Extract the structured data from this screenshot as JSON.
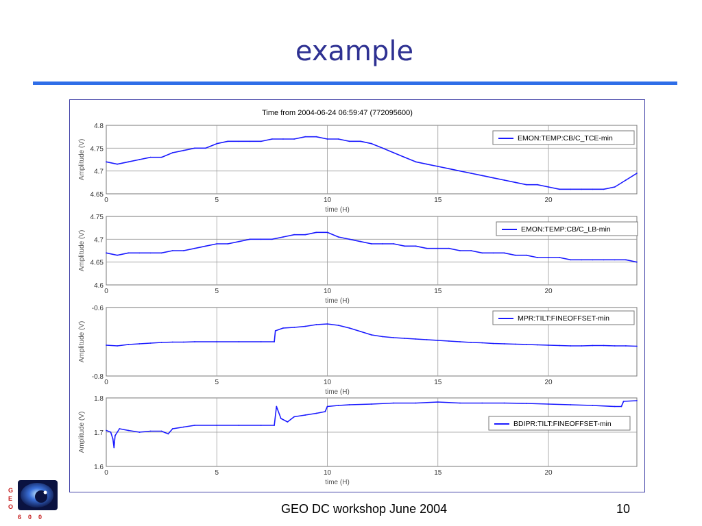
{
  "slide": {
    "title": "example",
    "footer": "GEO DC workshop June 2004",
    "page_number": "10",
    "accent_color": "#2f6ee8",
    "title_color": "#2e3192"
  },
  "logo": {
    "letters": [
      "G",
      "E",
      "O",
      "6",
      "0",
      "0"
    ]
  },
  "chart_data": [
    {
      "type": "line",
      "title": "Time from 2004-06-24 06:59:47 (772095600)",
      "xlabel": "time (H)",
      "ylabel": "Amplitude (V)",
      "xlim": [
        0,
        24
      ],
      "ylim": [
        4.65,
        4.8
      ],
      "xticks": [
        0,
        5,
        10,
        15,
        20
      ],
      "yticks": [
        4.65,
        4.7,
        4.75,
        4.8
      ],
      "ytick_labels": [
        "4.65",
        "4.7",
        "4.75",
        "4.8"
      ],
      "grid": true,
      "legend_position": "top-right",
      "series": [
        {
          "name": "EMON:TEMP:CB/C_TCE-min",
          "color": "#1a1aff",
          "x": [
            0,
            0.5,
            1,
            1.5,
            2,
            2.5,
            3,
            3.5,
            4,
            4.5,
            5,
            5.5,
            6,
            6.5,
            7,
            7.5,
            8,
            8.5,
            9,
            9.5,
            10,
            10.5,
            11,
            11.5,
            12,
            12.5,
            13,
            13.5,
            14,
            14.5,
            15,
            15.5,
            16,
            16.5,
            17,
            17.5,
            18,
            18.5,
            19,
            19.5,
            20,
            20.5,
            21,
            21.5,
            22,
            22.5,
            23,
            23.5,
            24
          ],
          "y": [
            4.72,
            4.715,
            4.72,
            4.725,
            4.73,
            4.73,
            4.74,
            4.745,
            4.75,
            4.75,
            4.76,
            4.765,
            4.765,
            4.765,
            4.765,
            4.77,
            4.77,
            4.77,
            4.775,
            4.775,
            4.77,
            4.77,
            4.765,
            4.765,
            4.76,
            4.75,
            4.74,
            4.73,
            4.72,
            4.715,
            4.71,
            4.705,
            4.7,
            4.695,
            4.69,
            4.685,
            4.68,
            4.675,
            4.67,
            4.67,
            4.665,
            4.66,
            4.66,
            4.66,
            4.66,
            4.66,
            4.665,
            4.68,
            4.695
          ]
        }
      ]
    },
    {
      "type": "line",
      "title": "",
      "xlabel": "time (H)",
      "ylabel": "Amplitude (V)",
      "xlim": [
        0,
        24
      ],
      "ylim": [
        4.6,
        4.75
      ],
      "xticks": [
        0,
        5,
        10,
        15,
        20
      ],
      "yticks": [
        4.6,
        4.65,
        4.7,
        4.75
      ],
      "ytick_labels": [
        "4.6",
        "4.65",
        "4.7",
        "4.75"
      ],
      "grid": true,
      "legend_position": "top-right",
      "series": [
        {
          "name": "EMON:TEMP:CB/C_LB-min",
          "color": "#1a1aff",
          "x": [
            0,
            0.5,
            1,
            1.5,
            2,
            2.5,
            3,
            3.5,
            4,
            4.5,
            5,
            5.5,
            6,
            6.5,
            7,
            7.5,
            8,
            8.5,
            9,
            9.5,
            10,
            10.5,
            11,
            11.5,
            12,
            12.5,
            13,
            13.5,
            14,
            14.5,
            15,
            15.5,
            16,
            16.5,
            17,
            17.5,
            18,
            18.5,
            19,
            19.5,
            20,
            20.5,
            21,
            21.5,
            22,
            22.5,
            23,
            23.5,
            24
          ],
          "y": [
            4.67,
            4.665,
            4.67,
            4.67,
            4.67,
            4.67,
            4.675,
            4.675,
            4.68,
            4.685,
            4.69,
            4.69,
            4.695,
            4.7,
            4.7,
            4.7,
            4.705,
            4.71,
            4.71,
            4.715,
            4.715,
            4.705,
            4.7,
            4.695,
            4.69,
            4.69,
            4.69,
            4.685,
            4.685,
            4.68,
            4.68,
            4.68,
            4.675,
            4.675,
            4.67,
            4.67,
            4.67,
            4.665,
            4.665,
            4.66,
            4.66,
            4.66,
            4.655,
            4.655,
            4.655,
            4.655,
            4.655,
            4.655,
            4.65
          ]
        }
      ]
    },
    {
      "type": "line",
      "title": "",
      "xlabel": "time (H)",
      "ylabel": "Amplitude (V)",
      "xlim": [
        0,
        24
      ],
      "ylim": [
        -0.8,
        -0.6
      ],
      "xticks": [
        0,
        5,
        10,
        15,
        20
      ],
      "yticks": [
        -0.8,
        -0.6
      ],
      "ytick_labels": [
        "-0.8",
        "-0.6"
      ],
      "grid": true,
      "legend_position": "top-right",
      "series": [
        {
          "name": "MPR:TILT:FINEOFFSET-min",
          "color": "#1a1aff",
          "x": [
            0,
            0.5,
            1,
            1.5,
            2,
            2.5,
            3,
            3.5,
            4,
            5,
            6,
            7,
            7.6,
            7.65,
            8,
            8.5,
            9,
            9.5,
            10,
            10.5,
            11,
            11.5,
            12,
            12.5,
            13,
            13.5,
            14,
            14.5,
            15,
            15.5,
            16,
            16.5,
            17,
            17.5,
            18,
            18.5,
            19,
            19.5,
            20,
            20.5,
            21,
            21.5,
            22,
            22.5,
            23,
            23.5,
            24
          ],
          "y": [
            -0.71,
            -0.712,
            -0.708,
            -0.706,
            -0.704,
            -0.702,
            -0.701,
            -0.701,
            -0.7,
            -0.7,
            -0.7,
            -0.7,
            -0.7,
            -0.668,
            -0.66,
            -0.658,
            -0.655,
            -0.65,
            -0.648,
            -0.652,
            -0.66,
            -0.67,
            -0.68,
            -0.685,
            -0.688,
            -0.69,
            -0.692,
            -0.694,
            -0.696,
            -0.698,
            -0.7,
            -0.702,
            -0.703,
            -0.705,
            -0.706,
            -0.707,
            -0.708,
            -0.709,
            -0.71,
            -0.711,
            -0.712,
            -0.712,
            -0.711,
            -0.711,
            -0.712,
            -0.712,
            -0.713
          ]
        }
      ]
    },
    {
      "type": "line",
      "title": "",
      "xlabel": "time (H)",
      "ylabel": "Amplitude (V)",
      "xlim": [
        0,
        24
      ],
      "ylim": [
        1.6,
        1.8
      ],
      "xticks": [
        0,
        5,
        10,
        15,
        20
      ],
      "yticks": [
        1.6,
        1.7,
        1.8
      ],
      "ytick_labels": [
        "1.6",
        "1.7",
        "1.8"
      ],
      "grid": true,
      "legend_position": "middle-right",
      "series": [
        {
          "name": "BDIPR:TILT:FINEOFFSET-min",
          "color": "#1a1aff",
          "x": [
            0,
            0.2,
            0.3,
            0.35,
            0.4,
            0.6,
            1,
            1.5,
            2,
            2.5,
            2.8,
            3,
            3.5,
            4,
            5,
            6,
            7,
            7.6,
            7.7,
            7.9,
            8.2,
            8.5,
            9,
            9.5,
            9.9,
            10,
            10.5,
            11,
            12,
            13,
            14,
            15,
            16,
            17,
            18,
            19,
            20,
            21,
            22,
            23,
            23.3,
            23.4,
            24
          ],
          "y": [
            1.705,
            1.7,
            1.68,
            1.655,
            1.69,
            1.71,
            1.705,
            1.7,
            1.703,
            1.703,
            1.695,
            1.71,
            1.715,
            1.72,
            1.72,
            1.72,
            1.72,
            1.72,
            1.775,
            1.74,
            1.73,
            1.745,
            1.75,
            1.755,
            1.76,
            1.775,
            1.778,
            1.78,
            1.782,
            1.785,
            1.785,
            1.788,
            1.785,
            1.785,
            1.785,
            1.784,
            1.782,
            1.78,
            1.778,
            1.775,
            1.775,
            1.79,
            1.792
          ]
        }
      ]
    }
  ]
}
